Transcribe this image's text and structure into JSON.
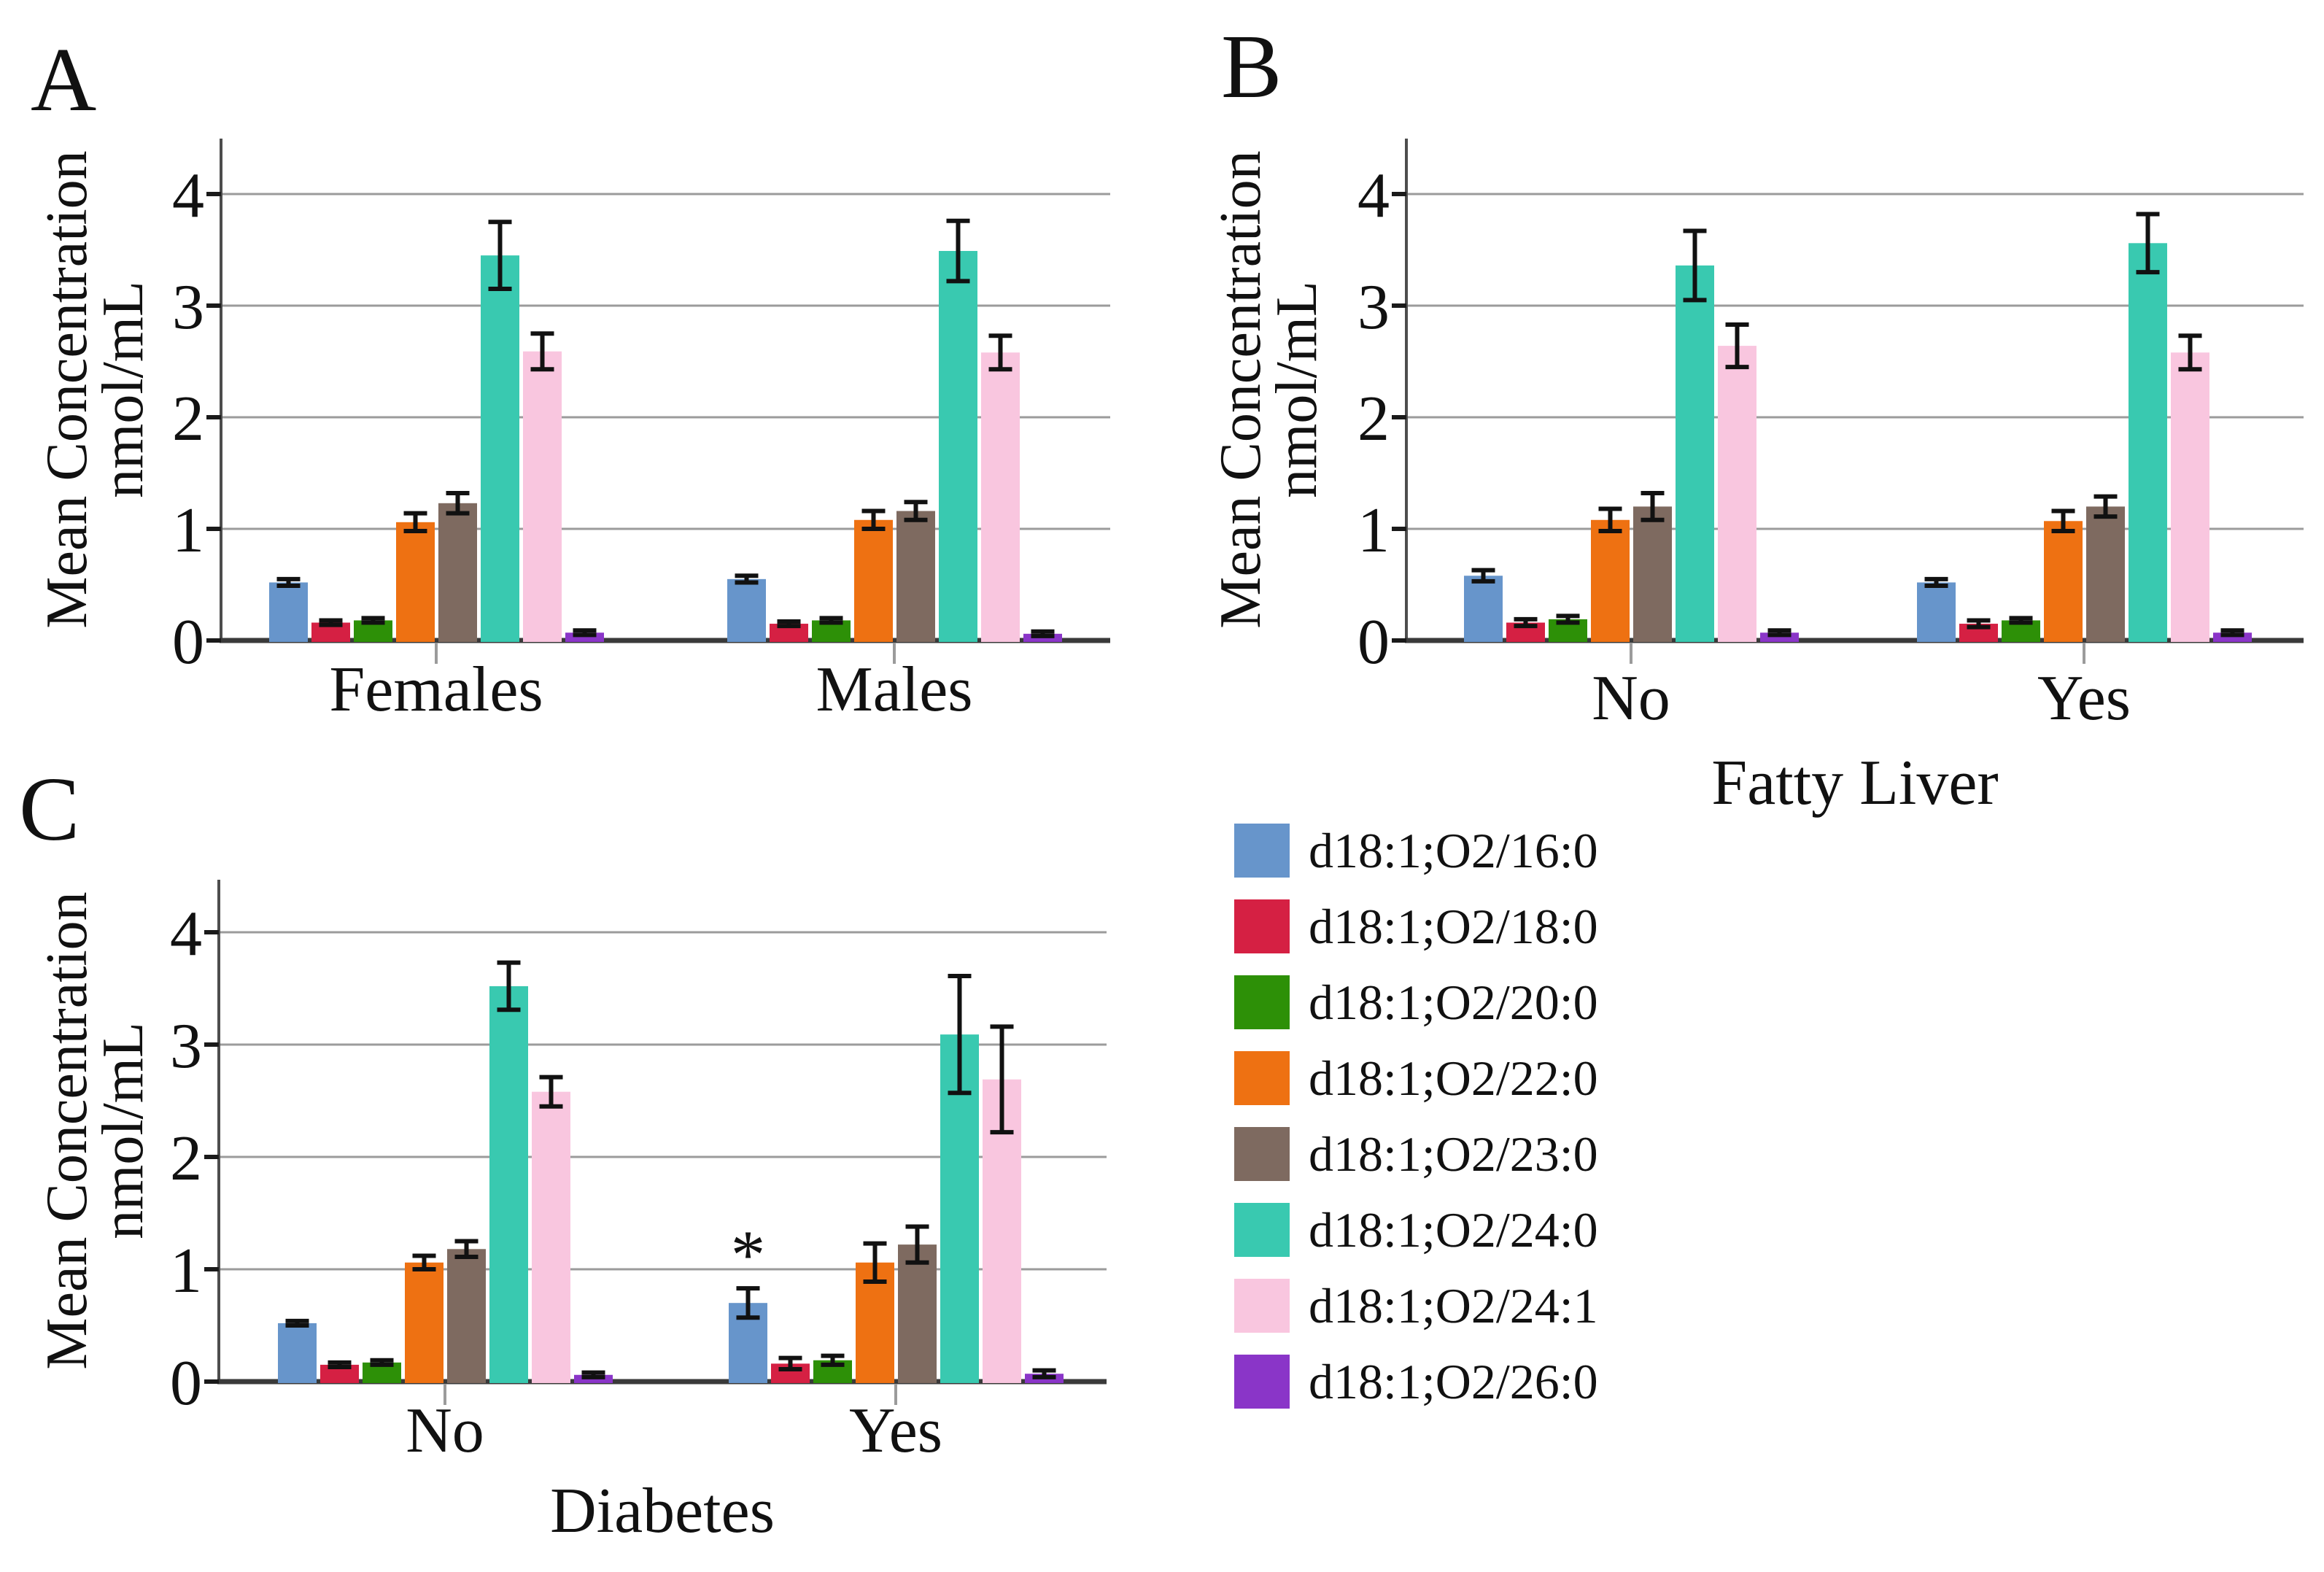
{
  "figure": {
    "panels": [
      {
        "letter": "A"
      },
      {
        "letter": "B"
      },
      {
        "letter": "C"
      }
    ],
    "ylabel_line1": "Mean Concentration",
    "ylabel_line2": "nmol/mL",
    "grid_color": "#9b9b9b",
    "axis_color": "#3a3a3a",
    "spine_color": "#4d4d4d",
    "error_bar_color": "#111111"
  },
  "legend": {
    "items": [
      {
        "label": "d18:1;O2/16:0",
        "color": "#6795CB"
      },
      {
        "label": "d18:1;O2/18:0",
        "color": "#D52043"
      },
      {
        "label": "d18:1;O2/20:0",
        "color": "#2D9007"
      },
      {
        "label": "d18:1;O2/22:0",
        "color": "#EE7112"
      },
      {
        "label": "d18:1;O2/23:0",
        "color": "#7E6A60"
      },
      {
        "label": "d18:1;O2/24:0",
        "color": "#39C9B0"
      },
      {
        "label": "d18:1;O2/24:1",
        "color": "#F9C6DF"
      },
      {
        "label": "d18:1;O2/26:0",
        "color": "#8A35C8"
      }
    ]
  },
  "chart_data": [
    {
      "panel": "A",
      "type": "bar",
      "title": "",
      "xlabel": "",
      "ylabel": "Mean Concentration nmol/mL",
      "categories": [
        "Females",
        "Males"
      ],
      "yticks": [
        0,
        1,
        2,
        3,
        4
      ],
      "ylim": [
        0,
        4.5
      ],
      "grid": true,
      "legend_position": "outside-right",
      "series": [
        {
          "name": "d18:1;O2/16:0",
          "color": "#6795CB",
          "values": [
            0.52,
            0.55
          ],
          "errors": [
            0.03,
            0.03
          ]
        },
        {
          "name": "d18:1;O2/18:0",
          "color": "#D52043",
          "values": [
            0.16,
            0.15
          ],
          "errors": [
            0.02,
            0.02
          ]
        },
        {
          "name": "d18:1;O2/20:0",
          "color": "#2D9007",
          "values": [
            0.18,
            0.18
          ],
          "errors": [
            0.02,
            0.02
          ]
        },
        {
          "name": "d18:1;O2/22:0",
          "color": "#EE7112",
          "values": [
            1.06,
            1.08
          ],
          "errors": [
            0.08,
            0.08
          ]
        },
        {
          "name": "d18:1;O2/23:0",
          "color": "#7E6A60",
          "values": [
            1.23,
            1.16
          ],
          "errors": [
            0.09,
            0.08
          ]
        },
        {
          "name": "d18:1;O2/24:0",
          "color": "#39C9B0",
          "values": [
            3.45,
            3.49
          ],
          "errors": [
            0.3,
            0.27
          ]
        },
        {
          "name": "d18:1;O2/24:1",
          "color": "#F9C6DF",
          "values": [
            2.59,
            2.58
          ],
          "errors": [
            0.16,
            0.15
          ]
        },
        {
          "name": "d18:1;O2/26:0",
          "color": "#8A35C8",
          "values": [
            0.07,
            0.06
          ],
          "errors": [
            0.02,
            0.02
          ]
        }
      ],
      "annotations": []
    },
    {
      "panel": "B",
      "type": "bar",
      "title": "",
      "xlabel": "Fatty Liver",
      "ylabel": "Mean Concentration nmol/mL",
      "categories": [
        "No",
        "Yes"
      ],
      "yticks": [
        0,
        1,
        2,
        3,
        4
      ],
      "ylim": [
        0,
        4.5
      ],
      "grid": true,
      "legend_position": "outside-right",
      "series": [
        {
          "name": "d18:1;O2/16:0",
          "color": "#6795CB",
          "values": [
            0.58,
            0.52
          ],
          "errors": [
            0.05,
            0.03
          ]
        },
        {
          "name": "d18:1;O2/18:0",
          "color": "#D52043",
          "values": [
            0.16,
            0.15
          ],
          "errors": [
            0.03,
            0.03
          ]
        },
        {
          "name": "d18:1;O2/20:0",
          "color": "#2D9007",
          "values": [
            0.19,
            0.18
          ],
          "errors": [
            0.03,
            0.02
          ]
        },
        {
          "name": "d18:1;O2/22:0",
          "color": "#EE7112",
          "values": [
            1.08,
            1.07
          ],
          "errors": [
            0.1,
            0.09
          ]
        },
        {
          "name": "d18:1;O2/23:0",
          "color": "#7E6A60",
          "values": [
            1.2,
            1.2
          ],
          "errors": [
            0.12,
            0.09
          ]
        },
        {
          "name": "d18:1;O2/24:0",
          "color": "#39C9B0",
          "values": [
            3.36,
            3.56
          ],
          "errors": [
            0.31,
            0.26
          ]
        },
        {
          "name": "d18:1;O2/24:1",
          "color": "#F9C6DF",
          "values": [
            2.64,
            2.58
          ],
          "errors": [
            0.19,
            0.15
          ]
        },
        {
          "name": "d18:1;O2/26:0",
          "color": "#8A35C8",
          "values": [
            0.07,
            0.07
          ],
          "errors": [
            0.02,
            0.02
          ]
        }
      ],
      "annotations": []
    },
    {
      "panel": "C",
      "type": "bar",
      "title": "",
      "xlabel": "Diabetes",
      "ylabel": "Mean Concentration nmol/mL",
      "categories": [
        "No",
        "Yes"
      ],
      "yticks": [
        0,
        1,
        2,
        3,
        4
      ],
      "ylim": [
        0,
        4.5
      ],
      "grid": true,
      "legend_position": "outside-right",
      "series": [
        {
          "name": "d18:1;O2/16:0",
          "color": "#6795CB",
          "values": [
            0.52,
            0.7
          ],
          "errors": [
            0.02,
            0.13
          ]
        },
        {
          "name": "d18:1;O2/18:0",
          "color": "#D52043",
          "values": [
            0.15,
            0.16
          ],
          "errors": [
            0.02,
            0.05
          ]
        },
        {
          "name": "d18:1;O2/20:0",
          "color": "#2D9007",
          "values": [
            0.17,
            0.19
          ],
          "errors": [
            0.02,
            0.04
          ]
        },
        {
          "name": "d18:1;O2/22:0",
          "color": "#EE7112",
          "values": [
            1.06,
            1.06
          ],
          "errors": [
            0.06,
            0.17
          ]
        },
        {
          "name": "d18:1;O2/23:0",
          "color": "#7E6A60",
          "values": [
            1.18,
            1.22
          ],
          "errors": [
            0.07,
            0.16
          ]
        },
        {
          "name": "d18:1;O2/24:0",
          "color": "#39C9B0",
          "values": [
            3.52,
            3.09
          ],
          "errors": [
            0.21,
            0.52
          ]
        },
        {
          "name": "d18:1;O2/24:1",
          "color": "#F9C6DF",
          "values": [
            2.58,
            2.69
          ],
          "errors": [
            0.13,
            0.47
          ]
        },
        {
          "name": "d18:1;O2/26:0",
          "color": "#8A35C8",
          "values": [
            0.06,
            0.07
          ],
          "errors": [
            0.02,
            0.03
          ]
        }
      ],
      "annotations": [
        {
          "text": "*",
          "category": "Yes",
          "series": "d18:1;O2/16:0"
        }
      ]
    }
  ]
}
